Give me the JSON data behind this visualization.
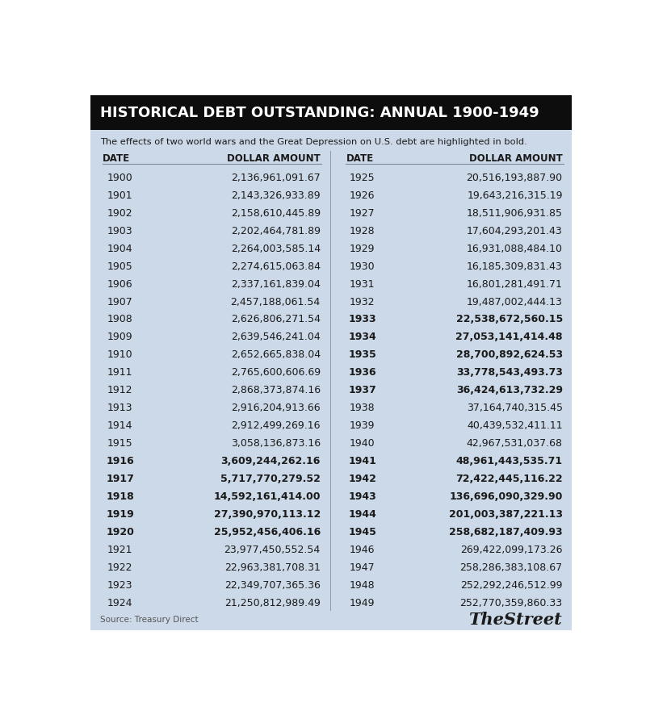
{
  "title": "HISTORICAL DEBT OUTSTANDING: ANNUAL 1900-1949",
  "subtitle": "The effects of two world wars and the Great Depression on U.S. debt are highlighted in bold.",
  "source": "Source: Treasury Direct",
  "brand": "TheStreet",
  "outer_bg": "#ffffff",
  "inner_bg": "#ccd9e8",
  "title_bg_color": "#0d0d0d",
  "title_text_color": "#ffffff",
  "text_color": "#1a1a1a",
  "source_color": "#555555",
  "header_col1": "DATE",
  "header_col2": "DOLLAR AMOUNT",
  "header_col3": "DATE",
  "header_col4": "DOLLAR AMOUNT",
  "left_data": [
    [
      "1900",
      "2,136,961,091.67",
      false
    ],
    [
      "1901",
      "2,143,326,933.89",
      false
    ],
    [
      "1902",
      "2,158,610,445.89",
      false
    ],
    [
      "1903",
      "2,202,464,781.89",
      false
    ],
    [
      "1904",
      "2,264,003,585.14",
      false
    ],
    [
      "1905",
      "2,274,615,063.84",
      false
    ],
    [
      "1906",
      "2,337,161,839.04",
      false
    ],
    [
      "1907",
      "2,457,188,061.54",
      false
    ],
    [
      "1908",
      "2,626,806,271.54",
      false
    ],
    [
      "1909",
      "2,639,546,241.04",
      false
    ],
    [
      "1910",
      "2,652,665,838.04",
      false
    ],
    [
      "1911",
      "2,765,600,606.69",
      false
    ],
    [
      "1912",
      "2,868,373,874.16",
      false
    ],
    [
      "1913",
      "2,916,204,913.66",
      false
    ],
    [
      "1914",
      "2,912,499,269.16",
      false
    ],
    [
      "1915",
      "3,058,136,873.16",
      false
    ],
    [
      "1916",
      "3,609,244,262.16",
      true
    ],
    [
      "1917",
      "5,717,770,279.52",
      true
    ],
    [
      "1918",
      "14,592,161,414.00",
      true
    ],
    [
      "1919",
      "27,390,970,113.12",
      true
    ],
    [
      "1920",
      "25,952,456,406.16",
      true
    ],
    [
      "1921",
      "23,977,450,552.54",
      false
    ],
    [
      "1922",
      "22,963,381,708.31",
      false
    ],
    [
      "1923",
      "22,349,707,365.36",
      false
    ],
    [
      "1924",
      "21,250,812,989.49",
      false
    ]
  ],
  "right_data": [
    [
      "1925",
      "20,516,193,887.90",
      false
    ],
    [
      "1926",
      "19,643,216,315.19",
      false
    ],
    [
      "1927",
      "18,511,906,931.85",
      false
    ],
    [
      "1928",
      "17,604,293,201.43",
      false
    ],
    [
      "1929",
      "16,931,088,484.10",
      false
    ],
    [
      "1930",
      "16,185,309,831.43",
      false
    ],
    [
      "1931",
      "16,801,281,491.71",
      false
    ],
    [
      "1932",
      "19,487,002,444.13",
      false
    ],
    [
      "1933",
      "22,538,672,560.15",
      true
    ],
    [
      "1934",
      "27,053,141,414.48",
      true
    ],
    [
      "1935",
      "28,700,892,624.53",
      true
    ],
    [
      "1936",
      "33,778,543,493.73",
      true
    ],
    [
      "1937",
      "36,424,613,732.29",
      true
    ],
    [
      "1938",
      "37,164,740,315.45",
      false
    ],
    [
      "1939",
      "40,439,532,411.11",
      false
    ],
    [
      "1940",
      "42,967,531,037.68",
      false
    ],
    [
      "1941",
      "48,961,443,535.71",
      true
    ],
    [
      "1942",
      "72,422,445,116.22",
      true
    ],
    [
      "1943",
      "136,696,090,329.90",
      true
    ],
    [
      "1944",
      "201,003,387,221.13",
      true
    ],
    [
      "1945",
      "258,682,187,409.93",
      true
    ],
    [
      "1946",
      "269,422,099,173.26",
      false
    ],
    [
      "1947",
      "258,286,383,108.67",
      false
    ],
    [
      "1948",
      "252,292,246,512.99",
      false
    ],
    [
      "1949",
      "252,770,359,860.33",
      false
    ]
  ]
}
